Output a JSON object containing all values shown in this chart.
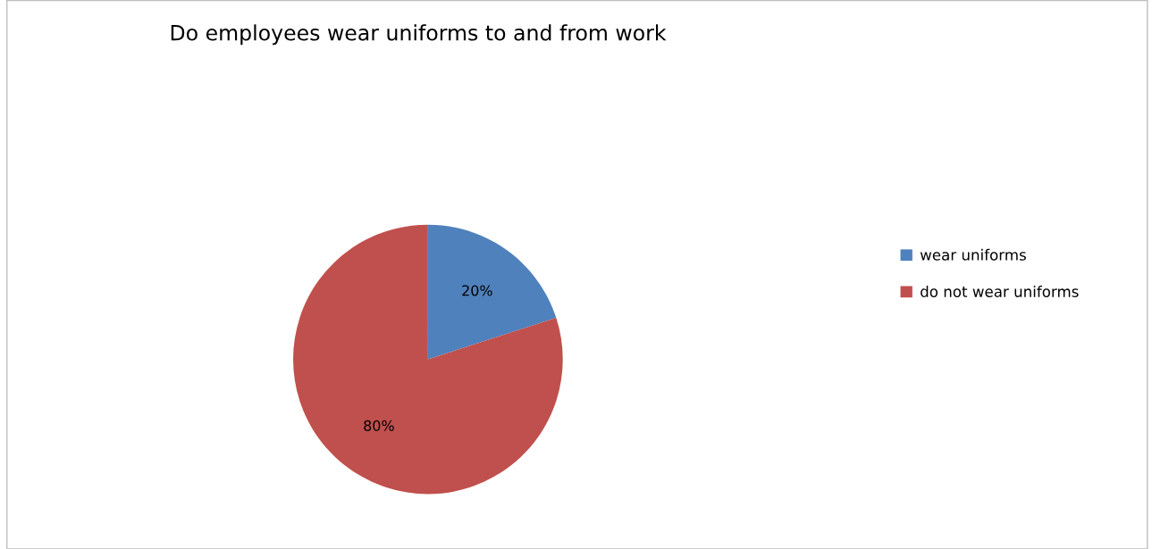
{
  "chart_data": {
    "type": "pie",
    "title": "Do employees wear uniforms to and from work",
    "categories": [
      "wear uniforms",
      "do not wear uniforms"
    ],
    "values": [
      20,
      80
    ],
    "colors": [
      "#4f81bd",
      "#c0504d"
    ],
    "value_labels": [
      "20%",
      "80%"
    ],
    "legend": "right"
  }
}
